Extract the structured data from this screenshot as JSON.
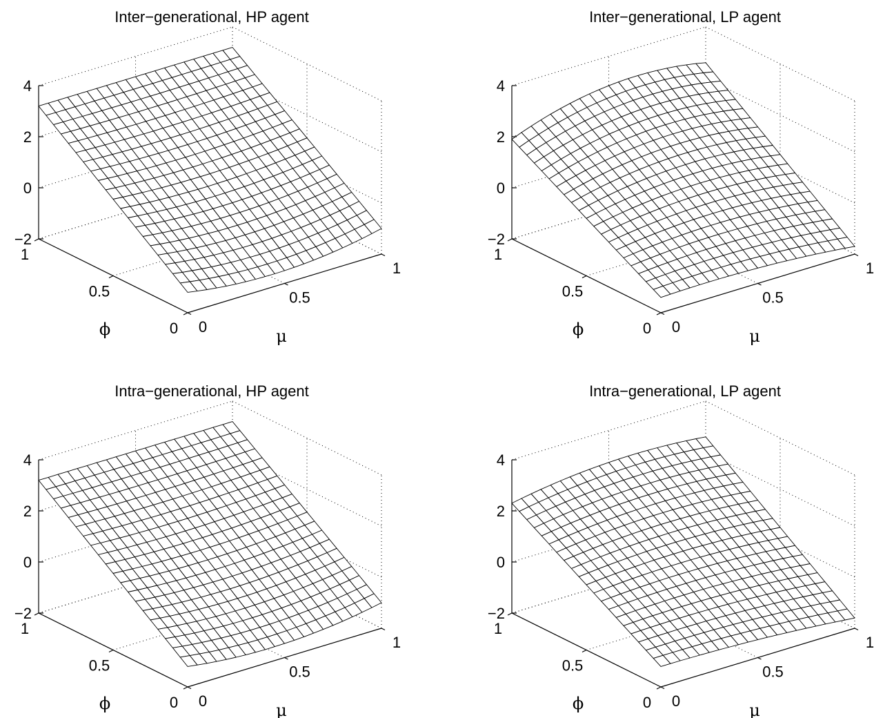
{
  "chart_data": [
    {
      "type": "surface",
      "title": "Inter−generational, HP agent",
      "xlabel": "μ",
      "ylabel": "ϕ",
      "zlabel": "",
      "xlim": [
        0,
        1
      ],
      "ylim": [
        0,
        1
      ],
      "zlim": [
        -2,
        4
      ],
      "xticks": [
        "0",
        "0.5",
        "1"
      ],
      "yticks": [
        "0",
        "0.5",
        "1"
      ],
      "zticks": [
        "−2",
        "0",
        "2",
        "4"
      ],
      "grid": true,
      "mesh_resolution": 21,
      "corners": {
        "mu0_phi0": -1.2,
        "mu1_phi0": -1.0,
        "mu0_phi1": 3.2,
        "mu1_phi1": 3.2
      },
      "edge_bulge": {
        "phi0": -0.4,
        "phi1": 0.0,
        "mu0": 0.0,
        "mu1": 0.0
      }
    },
    {
      "type": "surface",
      "title": "Inter−generational, LP agent",
      "xlabel": "μ",
      "ylabel": "ϕ",
      "zlabel": "",
      "xlim": [
        0,
        1
      ],
      "ylim": [
        0,
        1
      ],
      "zlim": [
        -2,
        4
      ],
      "xticks": [
        "0",
        "0.5",
        "1"
      ],
      "yticks": [
        "0",
        "0.5",
        "1"
      ],
      "zticks": [
        "−2",
        "0",
        "2",
        "4"
      ],
      "grid": true,
      "mesh_resolution": 21,
      "corners": {
        "mu0_phi0": -1.4,
        "mu1_phi0": -1.7,
        "mu0_phi1": 1.9,
        "mu1_phi1": 2.6
      },
      "edge_bulge": {
        "phi0": 0.15,
        "phi1": 0.6,
        "mu0": 0.0,
        "mu1": 0.0
      }
    },
    {
      "type": "surface",
      "title": "Intra−generational, HP agent",
      "xlabel": "μ",
      "ylabel": "ϕ",
      "zlabel": "",
      "xlim": [
        0,
        1
      ],
      "ylim": [
        0,
        1
      ],
      "zlim": [
        -2,
        4
      ],
      "xticks": [
        "0",
        "0.5",
        "1"
      ],
      "yticks": [
        "0",
        "0.5",
        "1"
      ],
      "zticks": [
        "−2",
        "0",
        "2",
        "4"
      ],
      "grid": true,
      "mesh_resolution": 21,
      "corners": {
        "mu0_phi0": -1.2,
        "mu1_phi0": -1.0,
        "mu0_phi1": 3.2,
        "mu1_phi1": 3.2
      },
      "edge_bulge": {
        "phi0": -0.35,
        "phi1": 0.0,
        "mu0": 0.0,
        "mu1": 0.0
      }
    },
    {
      "type": "surface",
      "title": "Intra−generational, LP agent",
      "xlabel": "μ",
      "ylabel": "ϕ",
      "zlabel": "",
      "xlim": [
        0,
        1
      ],
      "ylim": [
        0,
        1
      ],
      "zlim": [
        -2,
        4
      ],
      "xticks": [
        "0",
        "0.5",
        "1"
      ],
      "yticks": [
        "0",
        "0.5",
        "1"
      ],
      "zticks": [
        "−2",
        "0",
        "2",
        "4"
      ],
      "grid": true,
      "mesh_resolution": 21,
      "corners": {
        "mu0_phi0": -1.2,
        "mu1_phi0": -1.6,
        "mu0_phi1": 2.3,
        "mu1_phi1": 2.6
      },
      "edge_bulge": {
        "phi0": 0.1,
        "phi1": 0.3,
        "mu0": 0.0,
        "mu1": 0.0
      }
    }
  ],
  "colors": {
    "mesh_face": "#ffffff",
    "mesh_edge": "#000000",
    "axis": "#000000",
    "grid": "#000000"
  }
}
